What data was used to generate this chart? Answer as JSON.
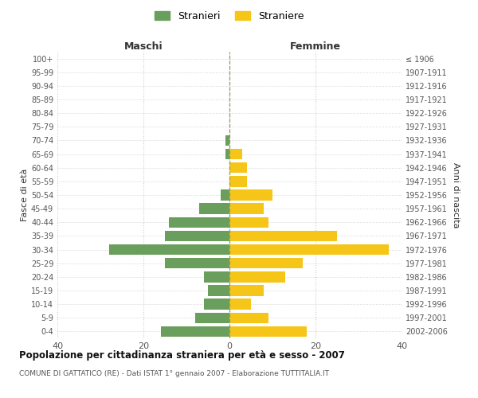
{
  "age_groups": [
    "0-4",
    "5-9",
    "10-14",
    "15-19",
    "20-24",
    "25-29",
    "30-34",
    "35-39",
    "40-44",
    "45-49",
    "50-54",
    "55-59",
    "60-64",
    "65-69",
    "70-74",
    "75-79",
    "80-84",
    "85-89",
    "90-94",
    "95-99",
    "100+"
  ],
  "birth_years": [
    "2002-2006",
    "1997-2001",
    "1992-1996",
    "1987-1991",
    "1982-1986",
    "1977-1981",
    "1972-1976",
    "1967-1971",
    "1962-1966",
    "1957-1961",
    "1952-1956",
    "1947-1951",
    "1942-1946",
    "1937-1941",
    "1932-1936",
    "1927-1931",
    "1922-1926",
    "1917-1921",
    "1912-1916",
    "1907-1911",
    "≤ 1906"
  ],
  "maschi": [
    16,
    8,
    6,
    5,
    6,
    15,
    28,
    15,
    14,
    7,
    2,
    0,
    0,
    1,
    1,
    0,
    0,
    0,
    0,
    0,
    0
  ],
  "femmine": [
    18,
    9,
    5,
    8,
    13,
    17,
    37,
    25,
    9,
    8,
    10,
    4,
    4,
    3,
    0,
    0,
    0,
    0,
    0,
    0,
    0
  ],
  "color_maschi": "#6a9e5c",
  "color_femmine": "#f5c518",
  "background_color": "#ffffff",
  "grid_color": "#cccccc",
  "title_main": "Popolazione per cittadinanza straniera per età e sesso - 2007",
  "title_sub": "COMUNE DI GATTATICO (RE) - Dati ISTAT 1° gennaio 2007 - Elaborazione TUTTITALIA.IT",
  "xlabel_left": "Maschi",
  "xlabel_right": "Femmine",
  "ylabel_left": "Fasce di età",
  "ylabel_right": "Anni di nascita",
  "legend_stranieri": "Stranieri",
  "legend_straniere": "Straniere",
  "xlim": 40,
  "xticks": [
    -40,
    -20,
    0,
    20,
    40
  ],
  "xticklabels": [
    "40",
    "20",
    "0",
    "20",
    "40"
  ]
}
